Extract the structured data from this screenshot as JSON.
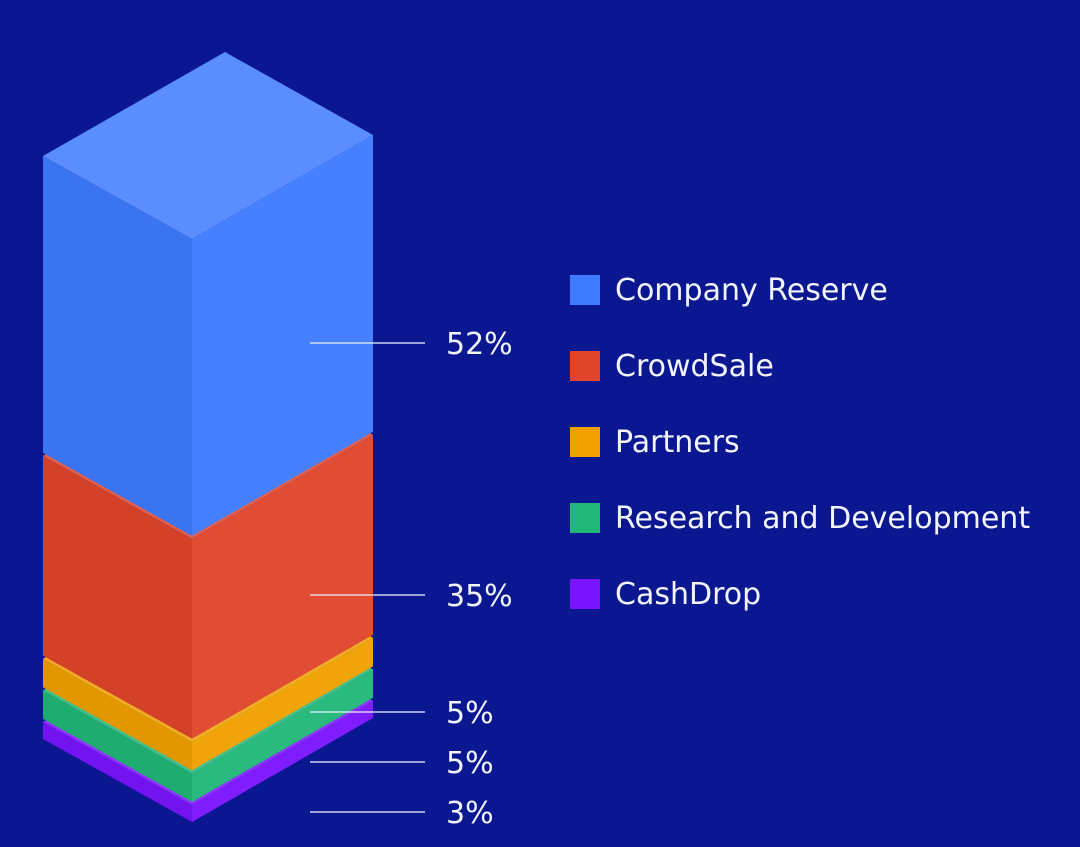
{
  "chart_data": {
    "type": "bar",
    "style": "isometric stacked column",
    "categories": [
      "Company Reserve",
      "CrowdSale",
      "Partners",
      "Research and Development",
      "CashDrop"
    ],
    "values": [
      52,
      35,
      5,
      5,
      3
    ],
    "value_labels": [
      "52%",
      "35%",
      "5%",
      "5%",
      "3%"
    ],
    "colors": [
      "#3f7bff",
      "#e0452c",
      "#f0a000",
      "#21b778",
      "#7a14ff"
    ],
    "legend_position": "right",
    "grid": false
  }
}
